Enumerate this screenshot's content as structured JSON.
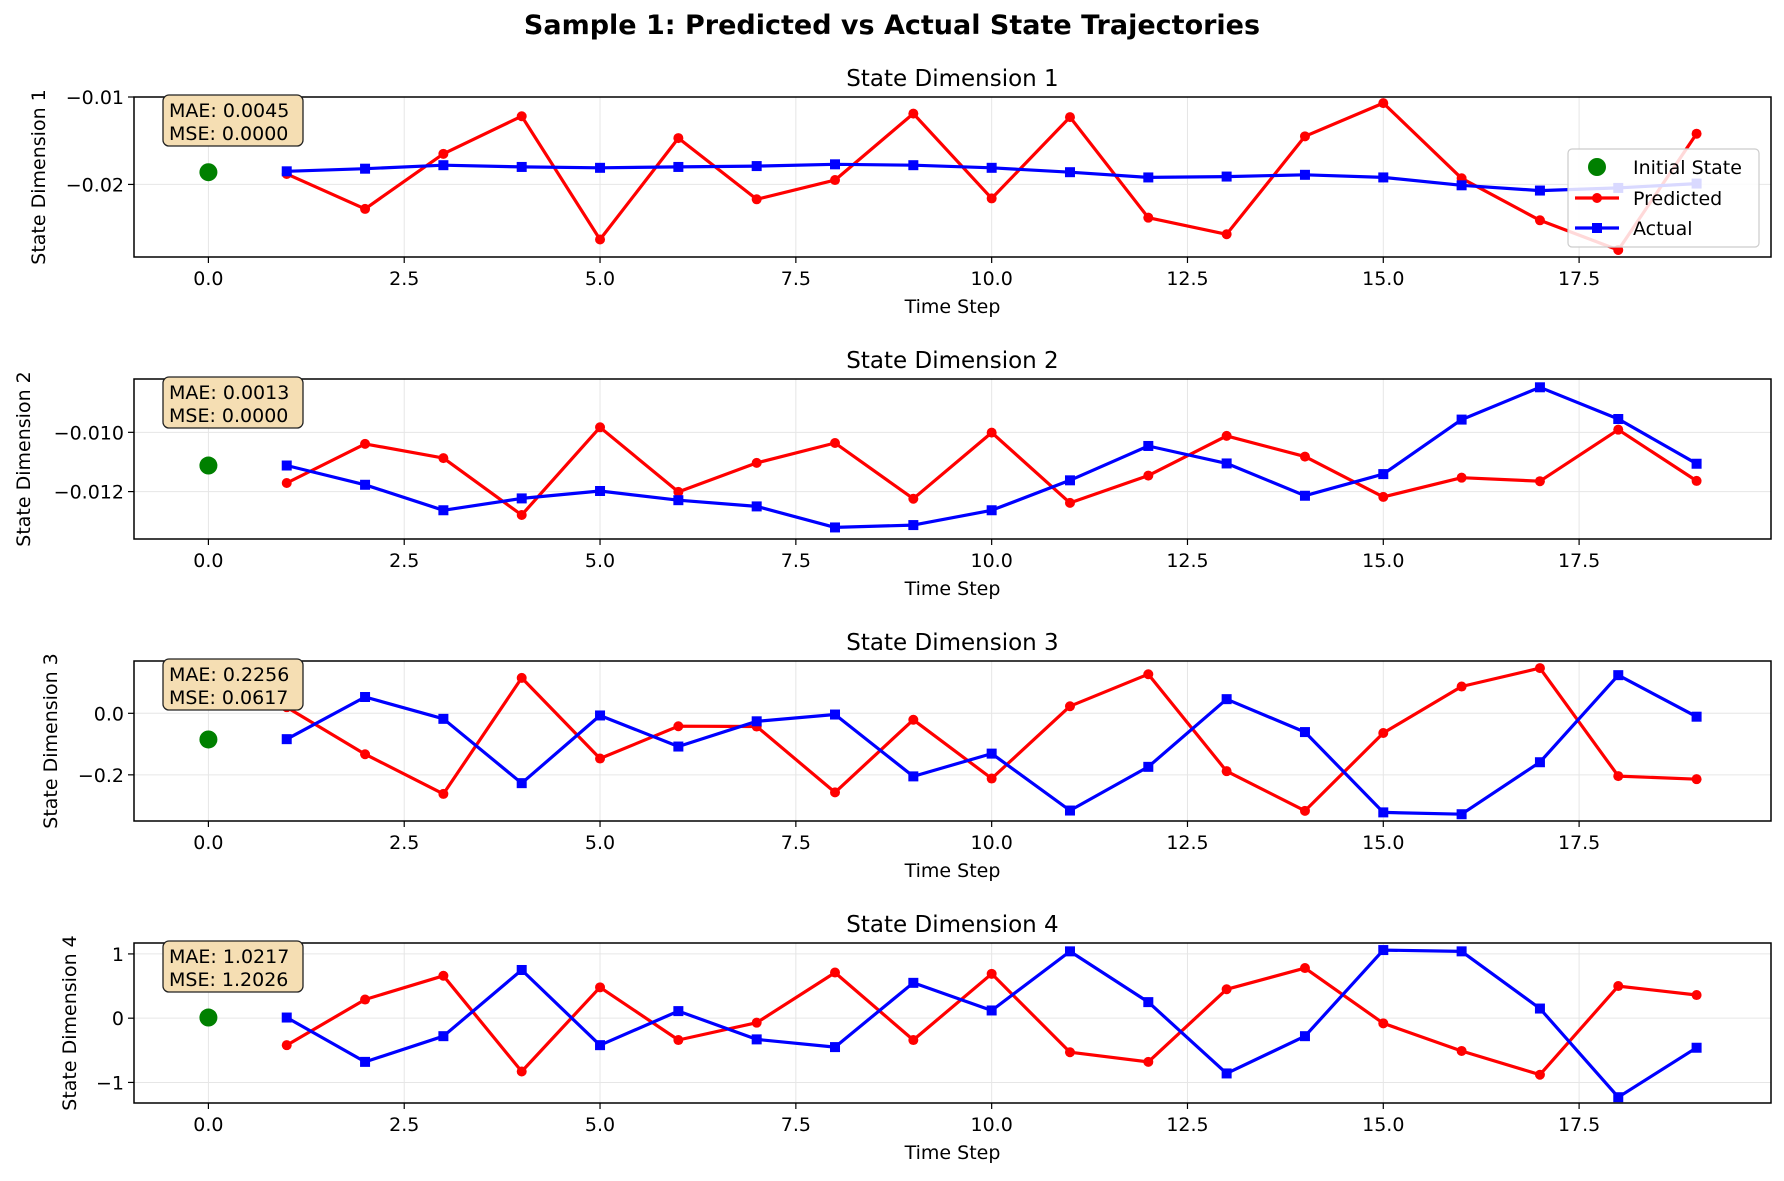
{
  "figure": {
    "title": "Sample 1: Predicted vs Actual State Trajectories"
  },
  "colors": {
    "predicted": "#ff0000",
    "actual": "#0000ff",
    "initial": "#008000",
    "grid": "#e6e6e6",
    "stats_box_fill": "#f5deb3"
  },
  "legend": {
    "position": "right",
    "entries": [
      {
        "label": "Initial State",
        "marker": "circle",
        "color": "#008000"
      },
      {
        "label": "Predicted",
        "marker": "circle-line",
        "color": "#ff0000"
      },
      {
        "label": "Actual",
        "marker": "square-line",
        "color": "#0000ff"
      }
    ]
  },
  "chart_data": [
    {
      "type": "line",
      "title": "State Dimension 1",
      "xlabel": "Time Step",
      "ylabel": "State Dimension 1",
      "xlim": [
        -0.95,
        19.95
      ],
      "ylim": [
        -0.0283,
        -0.01
      ],
      "xticks": [
        0.0,
        2.5,
        5.0,
        7.5,
        10.0,
        12.5,
        15.0,
        17.5
      ],
      "xtick_labels": [
        "0.0",
        "2.5",
        "5.0",
        "7.5",
        "10.0",
        "12.5",
        "15.0",
        "17.5"
      ],
      "yticks": [
        -0.01,
        -0.02
      ],
      "ytick_labels": [
        "−0.01",
        "−0.02"
      ],
      "grid": true,
      "stats": {
        "mae": "MAE: 0.0045",
        "mse": "MSE: 0.0000"
      },
      "initial_state": {
        "x": 0,
        "y": -0.0186
      },
      "series": [
        {
          "name": "Predicted",
          "x": [
            1,
            2,
            3,
            4,
            5,
            6,
            7,
            8,
            9,
            10,
            11,
            12,
            13,
            14,
            15,
            16,
            17,
            18,
            19
          ],
          "values": [
            -0.0188,
            -0.0228,
            -0.0165,
            -0.0122,
            -0.0263,
            -0.0147,
            -0.0217,
            -0.0195,
            -0.0119,
            -0.0216,
            -0.0123,
            -0.0238,
            -0.0257,
            -0.0145,
            -0.0107,
            -0.0193,
            -0.0241,
            -0.0275,
            -0.0142
          ]
        },
        {
          "name": "Actual",
          "x": [
            1,
            2,
            3,
            4,
            5,
            6,
            7,
            8,
            9,
            10,
            11,
            12,
            13,
            14,
            15,
            16,
            17,
            18,
            19
          ],
          "values": [
            -0.0185,
            -0.0182,
            -0.0178,
            -0.018,
            -0.0181,
            -0.018,
            -0.0179,
            -0.0177,
            -0.0178,
            -0.0181,
            -0.0186,
            -0.0192,
            -0.0191,
            -0.0189,
            -0.0192,
            -0.0201,
            -0.0207,
            -0.0204,
            -0.0199
          ]
        }
      ]
    },
    {
      "type": "line",
      "title": "State Dimension 2",
      "xlabel": "Time Step",
      "ylabel": "State Dimension 2",
      "xlim": [
        -0.95,
        19.95
      ],
      "ylim": [
        -0.0136,
        -0.0082
      ],
      "xticks": [
        0.0,
        2.5,
        5.0,
        7.5,
        10.0,
        12.5,
        15.0,
        17.5
      ],
      "xtick_labels": [
        "0.0",
        "2.5",
        "5.0",
        "7.5",
        "10.0",
        "12.5",
        "15.0",
        "17.5"
      ],
      "yticks": [
        -0.01,
        -0.012
      ],
      "ytick_labels": [
        "−0.010",
        "−0.012"
      ],
      "grid": true,
      "stats": {
        "mae": "MAE: 0.0013",
        "mse": "MSE: 0.0000"
      },
      "initial_state": {
        "x": 0,
        "y": -0.01112
      },
      "series": [
        {
          "name": "Predicted",
          "x": [
            1,
            2,
            3,
            4,
            5,
            6,
            7,
            8,
            9,
            10,
            11,
            12,
            13,
            14,
            15,
            16,
            17,
            18,
            19
          ],
          "values": [
            -0.01171,
            -0.01039,
            -0.01087,
            -0.01279,
            -0.00983,
            -0.01201,
            -0.01103,
            -0.01036,
            -0.01224,
            -0.01001,
            -0.01238,
            -0.01146,
            -0.01012,
            -0.01082,
            -0.01218,
            -0.01153,
            -0.01165,
            -0.00991,
            -0.01164
          ]
        },
        {
          "name": "Actual",
          "x": [
            1,
            2,
            3,
            4,
            5,
            6,
            7,
            8,
            9,
            10,
            11,
            12,
            13,
            14,
            15,
            16,
            17,
            18,
            19
          ],
          "values": [
            -0.01112,
            -0.01177,
            -0.01263,
            -0.01223,
            -0.01198,
            -0.01229,
            -0.0125,
            -0.01321,
            -0.01313,
            -0.01263,
            -0.01162,
            -0.01046,
            -0.01105,
            -0.01214,
            -0.01141,
            -0.00957,
            -0.00848,
            -0.00955,
            -0.01106
          ]
        }
      ]
    },
    {
      "type": "line",
      "title": "State Dimension 3",
      "xlabel": "Time Step",
      "ylabel": "State Dimension 3",
      "xlim": [
        -0.95,
        19.95
      ],
      "ylim": [
        -0.35,
        0.17
      ],
      "xticks": [
        0.0,
        2.5,
        5.0,
        7.5,
        10.0,
        12.5,
        15.0,
        17.5
      ],
      "xtick_labels": [
        "0.0",
        "2.5",
        "5.0",
        "7.5",
        "10.0",
        "12.5",
        "15.0",
        "17.5"
      ],
      "yticks": [
        0.0,
        -0.2
      ],
      "ytick_labels": [
        "0.0",
        "−0.2"
      ],
      "grid": true,
      "stats": {
        "mae": "MAE: 0.2256",
        "mse": "MSE: 0.0617"
      },
      "initial_state": {
        "x": 0,
        "y": -0.085
      },
      "series": [
        {
          "name": "Predicted",
          "x": [
            1,
            2,
            3,
            4,
            5,
            6,
            7,
            8,
            9,
            10,
            11,
            12,
            13,
            14,
            15,
            16,
            17,
            18,
            19
          ],
          "values": [
            0.02,
            -0.133,
            -0.262,
            0.115,
            -0.147,
            -0.042,
            -0.043,
            -0.257,
            -0.021,
            -0.212,
            0.023,
            0.127,
            -0.188,
            -0.317,
            -0.064,
            0.087,
            0.147,
            -0.204,
            -0.214
          ]
        },
        {
          "name": "Actual",
          "x": [
            1,
            2,
            3,
            4,
            5,
            6,
            7,
            8,
            9,
            10,
            11,
            12,
            13,
            14,
            15,
            16,
            17,
            18,
            19
          ],
          "values": [
            -0.084,
            0.053,
            -0.018,
            -0.227,
            -0.007,
            -0.108,
            -0.026,
            -0.004,
            -0.205,
            -0.131,
            -0.316,
            -0.174,
            0.046,
            -0.061,
            -0.322,
            -0.328,
            -0.159,
            0.124,
            -0.011
          ]
        }
      ]
    },
    {
      "type": "line",
      "title": "State Dimension 4",
      "xlabel": "Time Step",
      "ylabel": "State Dimension 4",
      "xlim": [
        -0.95,
        19.95
      ],
      "ylim": [
        -1.32,
        1.17
      ],
      "xticks": [
        0.0,
        2.5,
        5.0,
        7.5,
        10.0,
        12.5,
        15.0,
        17.5
      ],
      "xtick_labels": [
        "0.0",
        "2.5",
        "5.0",
        "7.5",
        "10.0",
        "12.5",
        "15.0",
        "17.5"
      ],
      "yticks": [
        1,
        0,
        -1
      ],
      "ytick_labels": [
        "1",
        "0",
        "−1"
      ],
      "grid": true,
      "stats": {
        "mae": "MAE: 1.0217",
        "mse": "MSE: 1.2026"
      },
      "initial_state": {
        "x": 0,
        "y": 0.01
      },
      "series": [
        {
          "name": "Predicted",
          "x": [
            1,
            2,
            3,
            4,
            5,
            6,
            7,
            8,
            9,
            10,
            11,
            12,
            13,
            14,
            15,
            16,
            17,
            18,
            19
          ],
          "values": [
            -0.42,
            0.29,
            0.66,
            -0.83,
            0.48,
            -0.34,
            -0.07,
            0.71,
            -0.34,
            0.69,
            -0.53,
            -0.68,
            0.45,
            0.78,
            -0.08,
            -0.51,
            -0.88,
            0.5,
            0.36
          ]
        },
        {
          "name": "Actual",
          "x": [
            1,
            2,
            3,
            4,
            5,
            6,
            7,
            8,
            9,
            10,
            11,
            12,
            13,
            14,
            15,
            16,
            17,
            18,
            19
          ],
          "values": [
            0.01,
            -0.68,
            -0.28,
            0.75,
            -0.42,
            0.11,
            -0.33,
            -0.45,
            0.55,
            0.12,
            1.04,
            0.25,
            -0.86,
            -0.28,
            1.06,
            1.04,
            0.15,
            -1.23,
            -0.46
          ]
        }
      ]
    }
  ]
}
